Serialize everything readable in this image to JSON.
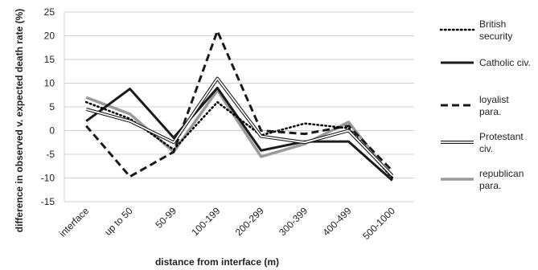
{
  "chart_data": {
    "type": "line",
    "categories": [
      "interface",
      "up to 50",
      "50-99",
      "100-199",
      "200-299",
      "300-399",
      "400-499",
      "500-1000"
    ],
    "xlabel": "distance from interface (m)",
    "ylabel": "difference in observed v. expected death rate (%)",
    "ylim": [
      -15,
      25
    ],
    "yticks": [
      -15,
      -10,
      -5,
      0,
      5,
      10,
      15,
      20,
      25
    ],
    "grid": true,
    "legend_position": "right",
    "series": [
      {
        "name": "British security",
        "style": "dotted",
        "color": "#000000",
        "values": [
          6,
          2.5,
          -4,
          6,
          -1,
          1.5,
          0.5,
          -10
        ]
      },
      {
        "name": "Catholic civ.",
        "style": "solid-thick",
        "color": "#1a1a1a",
        "values": [
          2,
          8.8,
          -1.5,
          9,
          -4.2,
          -2.3,
          -2.3,
          -10.5
        ]
      },
      {
        "name": "loyalist para.",
        "style": "dashed",
        "color": "#1a1a1a",
        "values": [
          1,
          -9.7,
          -4.5,
          21,
          0,
          -0.7,
          1,
          -8.5
        ]
      },
      {
        "name": "Protestant civ.",
        "style": "double",
        "color": "#1a1a1a",
        "values": [
          4.5,
          2,
          -2.5,
          11,
          -1.2,
          -2.5,
          0,
          -9.5
        ]
      },
      {
        "name": "republican para.",
        "style": "solid-gray",
        "color": "#9a9a9a",
        "values": [
          7,
          3.5,
          -4.5,
          8.5,
          -5.5,
          -2.8,
          1.8,
          -10
        ]
      }
    ]
  }
}
